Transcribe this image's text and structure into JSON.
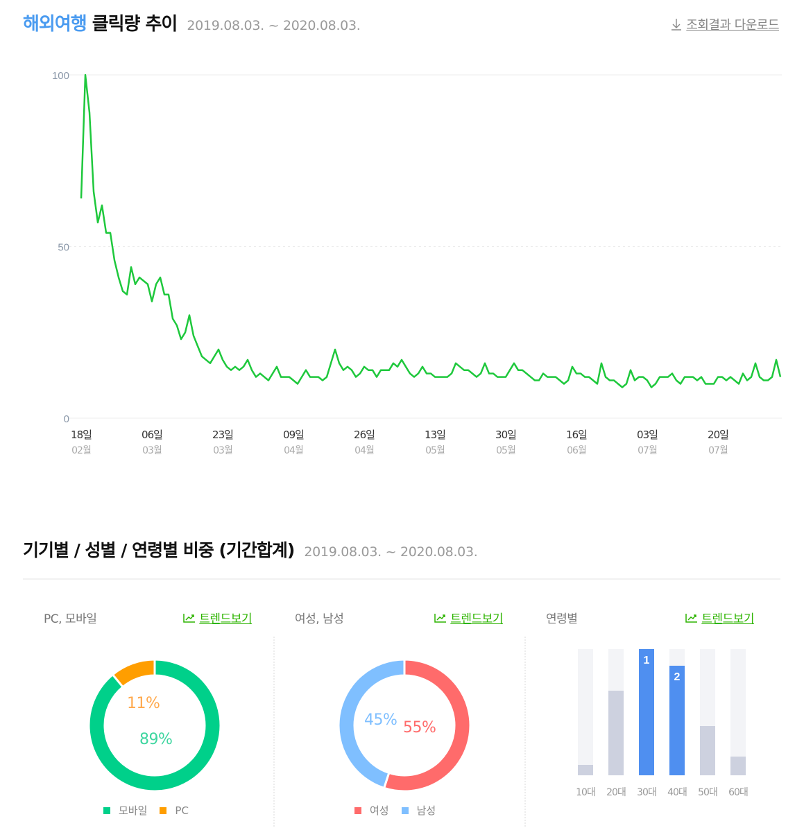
{
  "trend_section": {
    "keyword": "해외여행",
    "title": "클릭량 추이",
    "period": "2019.08.03. ~ 2020.08.03.",
    "download_label": "조회결과 다운로드",
    "download_icon": "download-arrow-icon"
  },
  "ratio_section": {
    "title": "기기별 / 성별 / 연령별 비중 (기간합계)",
    "period": "2019.08.03. ~ 2020.08.03.",
    "trend_link_label": "트렌드보기",
    "trend_link_icon": "trend-chart-icon",
    "panels": {
      "device": {
        "label": "PC, 모바일"
      },
      "gender": {
        "label": "여성, 남성"
      },
      "age": {
        "label": "연령별"
      }
    }
  },
  "colors": {
    "line": "#1ec83c",
    "keyword": "#4a9bf0",
    "trend_link": "#2db400",
    "mobile": "#00d08a",
    "pc": "#ff9e00",
    "female": "#ff6b6b",
    "male": "#7fbfff",
    "age_top": "#4f8ff0",
    "age_other": "#cdd1df",
    "age_track": "#f3f4f7"
  },
  "chart_data": [
    {
      "type": "line",
      "title": "해외여행 클릭량 추이",
      "subtitle": "2019.08.03. ~ 2020.08.03.",
      "xlabel": "",
      "ylabel": "",
      "ylim": [
        0,
        100
      ],
      "yticks": [
        0,
        50,
        100
      ],
      "grid": true,
      "x_tick_labels": [
        {
          "day": "18일",
          "month": "02월",
          "index": 1
        },
        {
          "day": "06일",
          "month": "03월",
          "index": 18
        },
        {
          "day": "23일",
          "month": "03월",
          "index": 35
        },
        {
          "day": "09일",
          "month": "04월",
          "index": 52
        },
        {
          "day": "26일",
          "month": "04월",
          "index": 69
        },
        {
          "day": "13일",
          "month": "05월",
          "index": 86
        },
        {
          "day": "30일",
          "month": "05월",
          "index": 103
        },
        {
          "day": "16일",
          "month": "06월",
          "index": 120
        },
        {
          "day": "03일",
          "month": "07월",
          "index": 137
        },
        {
          "day": "20일",
          "month": "07월",
          "index": 154
        }
      ],
      "series": [
        {
          "name": "해외여행",
          "color": "#1ec83c",
          "values": [
            64,
            100,
            89,
            66,
            57,
            62,
            54,
            54,
            46,
            41,
            37,
            36,
            44,
            39,
            41,
            40,
            39,
            34,
            39,
            41,
            36,
            36,
            29,
            27,
            23,
            25,
            30,
            24,
            21,
            18,
            17,
            16,
            18,
            20,
            17,
            15,
            14,
            15,
            14,
            15,
            17,
            14,
            12,
            13,
            12,
            11,
            13,
            15,
            12,
            12,
            12,
            11,
            10,
            12,
            14,
            12,
            12,
            12,
            11,
            12,
            16,
            20,
            16,
            14,
            15,
            14,
            12,
            13,
            15,
            14,
            14,
            12,
            14,
            14,
            14,
            16,
            15,
            17,
            15,
            13,
            12,
            13,
            15,
            13,
            13,
            12,
            12,
            12,
            12,
            13,
            16,
            15,
            14,
            14,
            13,
            12,
            13,
            16,
            13,
            13,
            12,
            12,
            12,
            14,
            16,
            14,
            14,
            13,
            12,
            11,
            11,
            13,
            12,
            12,
            12,
            11,
            10,
            11,
            15,
            13,
            13,
            12,
            12,
            11,
            10,
            16,
            12,
            11,
            11,
            10,
            9,
            10,
            14,
            11,
            12,
            12,
            11,
            9,
            10,
            12,
            12,
            12,
            13,
            11,
            10,
            12,
            12,
            12,
            11,
            12,
            10,
            10,
            10,
            12,
            12,
            11,
            12,
            11,
            10,
            13,
            11,
            12,
            16,
            12,
            11,
            11,
            12,
            17,
            12
          ]
        }
      ]
    },
    {
      "type": "pie",
      "title": "PC, 모바일",
      "categories": [
        "모바일",
        "PC"
      ],
      "values": [
        89,
        11
      ],
      "labels": [
        "89%",
        "11%"
      ],
      "colors": [
        "#00d08a",
        "#ff9e00"
      ],
      "legend_position": "bottom"
    },
    {
      "type": "pie",
      "title": "여성, 남성",
      "categories": [
        "여성",
        "남성"
      ],
      "values": [
        55,
        45
      ],
      "labels": [
        "55%",
        "45%"
      ],
      "colors": [
        "#ff6b6b",
        "#7fbfff"
      ],
      "legend_position": "bottom"
    },
    {
      "type": "bar",
      "title": "연령별",
      "categories": [
        "10대",
        "20대",
        "30대",
        "40대",
        "50대",
        "60대"
      ],
      "values": [
        8,
        67,
        100,
        87,
        39,
        15
      ],
      "ranks": {
        "30대": 1,
        "40대": 2
      },
      "ylim": [
        0,
        100
      ]
    }
  ]
}
